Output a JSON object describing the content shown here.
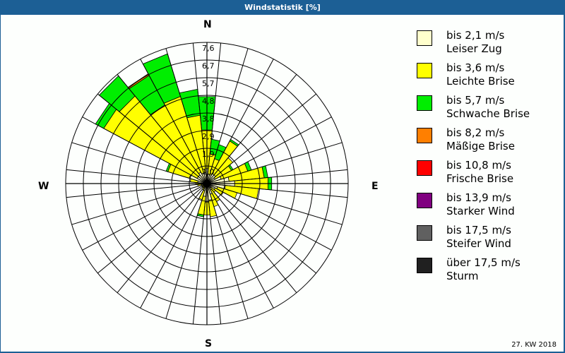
{
  "window": {
    "title": "Windstatistik [%]"
  },
  "compass": {
    "n": "N",
    "e": "E",
    "s": "S",
    "w": "W"
  },
  "footer": {
    "week": "27. KW 2018"
  },
  "legend": [
    {
      "speed": "bis 2,1 m/s",
      "name": "Leiser Zug",
      "color": "#ffffcc"
    },
    {
      "speed": "bis 3,6 m/s",
      "name": "Leichte Brise",
      "color": "#ffff00"
    },
    {
      "speed": "bis 5,7 m/s",
      "name": "Schwache Brise",
      "color": "#00ee00"
    },
    {
      "speed": "bis 8,2 m/s",
      "name": "Mäßige Brise",
      "color": "#ff7f00"
    },
    {
      "speed": "bis 10,8 m/s",
      "name": "Frische Brise",
      "color": "#ff0000"
    },
    {
      "speed": "bis 13,9 m/s",
      "name": "Starker Wind",
      "color": "#800080"
    },
    {
      "speed": "bis 17,5 m/s",
      "name": "Steifer Wind",
      "color": "#606060"
    },
    {
      "speed": "über 17,5 m/s",
      "name": "Sturm",
      "color": "#202020"
    }
  ],
  "chart_data": {
    "type": "wind-rose",
    "title": "Windstatistik [%]",
    "unit": "%",
    "ring_labels": [
      "1,0",
      "1,9",
      "2,9",
      "3,8",
      "4,8",
      "5,7",
      "6,7",
      "7,6"
    ],
    "rmax": 7.6,
    "sector_width_deg": 11.25,
    "series": [
      "Leiser Zug",
      "Leichte Brise",
      "Schwache Brise",
      "Mäßige Brise"
    ],
    "directions_deg": [
      0,
      11.25,
      22.5,
      33.75,
      45,
      56.25,
      67.5,
      78.75,
      90,
      101.25,
      112.5,
      123.75,
      135,
      146.25,
      157.5,
      168.75,
      180,
      191.25,
      202.5,
      213.75,
      225,
      236.25,
      247.5,
      258.75,
      270,
      281.25,
      292.5,
      303.75,
      315,
      326.25,
      337.5,
      348.75
    ],
    "cumulative_values": [
      [
        0.8,
        2.9,
        4.7
      ],
      [
        0.5,
        1.6,
        2.4
      ],
      [
        0.5,
        1.4,
        2.2
      ],
      [
        0.6,
        2.6,
        2.7
      ],
      [
        0.6,
        1.8
      ],
      [
        0.5,
        1.5,
        1.6
      ],
      [
        0.8,
        2.3,
        2.5
      ],
      [
        1.2,
        3.1,
        3.3
      ],
      [
        1.5,
        3.3,
        3.5
      ],
      [
        1.0,
        2.8
      ],
      [
        0.6,
        1.7
      ],
      [
        0.5,
        1.0
      ],
      [
        0.3,
        0.6
      ],
      [
        0.4,
        1.1
      ],
      [
        0.6,
        1.3
      ],
      [
        0.9,
        1.8
      ],
      [
        1.0,
        1.7
      ],
      [
        0.7,
        1.7,
        1.8
      ],
      [
        0.4,
        0.9
      ],
      [
        0.2,
        0.4
      ],
      [
        0.2,
        0.3
      ],
      [
        0.2,
        0.3
      ],
      [
        0.2,
        0.3
      ],
      [
        0.3,
        0.5
      ],
      [
        0.4,
        0.6
      ],
      [
        0.5,
        0.9
      ],
      [
        1.0,
        2.2,
        2.3
      ],
      [
        0.6,
        6.3,
        6.8
      ],
      [
        0.6,
        6.1,
        7.5
      ],
      [
        0.7,
        4.8,
        6.6,
        6.7
      ],
      [
        0.6,
        4.9,
        7.3
      ],
      [
        0.6,
        3.7,
        5.1
      ]
    ]
  }
}
